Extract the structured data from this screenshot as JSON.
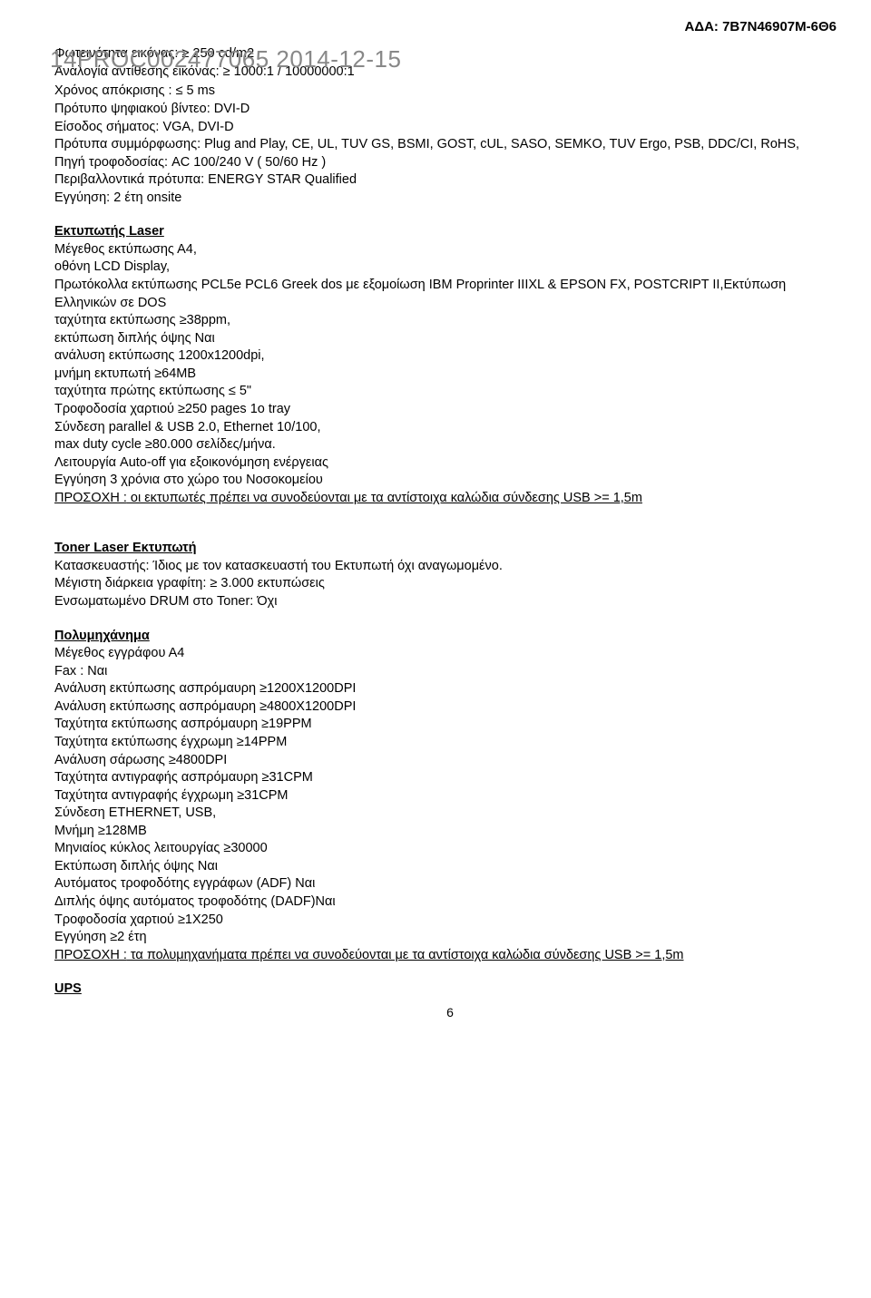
{
  "header_code": "ΑΔΑ: 7Β7Ν46907Μ-6Θ6",
  "watermark": "14PROC002477065 2014-12-15",
  "intro_lines": [
    "Φωτεινότητα εικόνας: ≥ 250 cd/m2",
    "Αναλογία αντίθεσης εικόνας: ≥ 1000:1 / 10000000:1",
    "Χρόνος απόκρισης : ≤ 5 ms",
    "Πρότυπο ψηφιακού βίντεο:  DVI-D",
    "Είσοδος σήματος: VGA, DVI-D",
    "Πρότυπα συμμόρφωσης: Plug and Play, CE, UL, TUV GS, BSMI, GOST, cUL, SASO, SEMKO, TUV Ergo, PSB, DDC/CI, RoHS,",
    "Πηγή τροφοδοσίας: AC 100/240 V ( 50/60 Hz )",
    "Περιβαλλοντικά πρότυπα: ENERGY STAR Qualified",
    "Εγγύηση: 2 έτη onsite"
  ],
  "laser_heading": "Εκτυπωτής Laser",
  "laser_lines": [
    "Μέγεθος εκτύπωσης Α4,",
    "οθόνη LCD Display,",
    "Πρωτόκολλα εκτύπωσης  PCL5e PCL6  Greek dos με εξομοίωση IBM Proprinter IIIXL & EPSON FX, POSTCRIPT II,Εκτύπωση Ελληνικών σε DOS",
    "ταχύτητα εκτύπωσης ≥38ppm,",
    "εκτύπωση διπλής όψης Ναι",
    "ανάλυση εκτύπωσης   1200x1200dpi,",
    "μνήμη εκτυπωτή ≥64MB",
    "ταχύτητα πρώτης εκτύπωσης ≤ 5\"",
    "Τροφοδοσία χαρτιού ≥250 pages 1ο tray",
    "Σύνδεση   parallel & USB 2.0, Ethernet 10/100,",
    "max duty cycle ≥80.000 σελίδες/μήνα.",
    "Λειτουργία Auto-off για εξοικονόμηση ενέργειας",
    "Εγγύηση  3 χρόνια στο χώρο του Νοσοκομείου"
  ],
  "laser_warning_prefix": "ΠΡΟΣΟΧΗ :",
  "laser_warning_rest": " οι εκτυπωτές πρέπει να συνοδεύονται με τα αντίστοιχα καλώδια σύνδεσης USB >= 1,5m",
  "toner_heading": "Toner Laser Εκτυπωτή",
  "toner_lines": [
    "Κατασκευαστής: Ίδιος με τον κατασκευαστή του Εκτυπωτή όχι αναγωμομένο.",
    "Μέγιστη διάρκεια γραφίτη:  ≥ 3.000 εκτυπώσεις",
    "Ενσωματωμένο DRUM στο Toner:   Όχι"
  ],
  "multi_heading": "Πολυμηχάνημα",
  "multi_lines": [
    "Μέγεθος εγγράφου      Α4",
    "Fax : Ναι",
    "Ανάλυση εκτύπωσης ασπρόμαυρη ≥1200X1200DPI",
    "Ανάλυση εκτύπωσης ασπρόμαυρη ≥4800X1200DPI",
    "Ταχύτητα εκτύπωσης ασπρόμαυρη ≥19PPM",
    "Ταχύτητα εκτύπωσης έγχρωμη ≥14PPM",
    "Ανάλυση σάρωσης ≥4800DPI",
    "Ταχύτητα αντιγραφής ασπρόμαυρη ≥31CPM",
    "Ταχύτητα αντιγραφής έγχρωμη ≥31CPM",
    "Σύνδεση ETHERNET, USB,",
    "Μνήμη ≥128MB",
    "Μηνιαίος κύκλος λειτουργίας ≥30000",
    "Εκτύπωση διπλής όψης Ναι",
    "Αυτόματος τροφοδότης εγγράφων (ADF) Ναι",
    "Διπλής όψης αυτόματος τροφοδότης (DADF)Ναι",
    "Τροφοδοσία χαρτιού ≥1X250",
    "Εγγύηση ≥2 έτη"
  ],
  "multi_warning_prefix": "ΠΡΟΣΟΧΗ :",
  "multi_warning_rest": " τα πολυμηχανήματα πρέπει να συνοδεύονται με τα αντίστοιχα καλώδια σύνδεσης USB >= 1,5m",
  "ups_heading": "UPS",
  "page_number": "6"
}
